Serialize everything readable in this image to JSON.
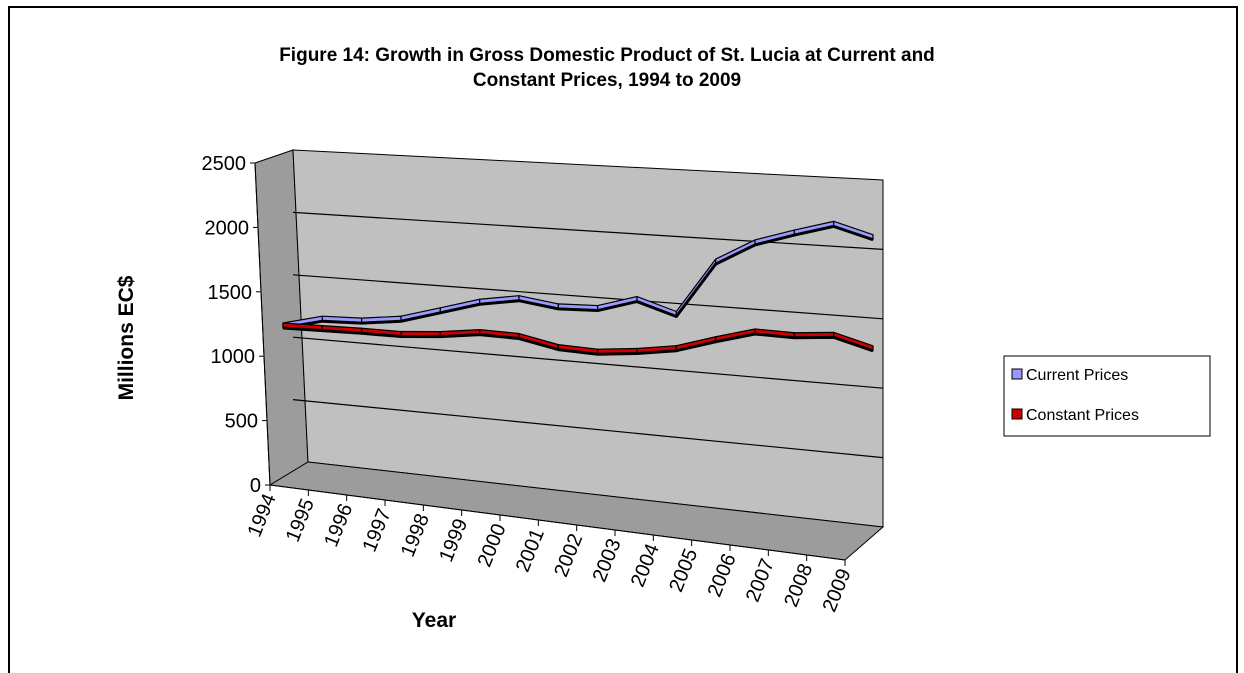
{
  "chart_data": {
    "type": "line",
    "title": "Figure 14: Growth in Gross Domestic Product of St. Lucia at Current and Constant Prices, 1994 to 2009",
    "title_lines": [
      "Figure 14: Growth in Gross Domestic Product of St. Lucia at Current and",
      "Constant Prices, 1994 to 2009"
    ],
    "xlabel": "Year",
    "ylabel": "Millions EC$",
    "ylim": [
      0,
      2500
    ],
    "yticks": [
      "0",
      "500",
      "1000",
      "1500",
      "2000",
      "2500"
    ],
    "categories": [
      "1994",
      "1995",
      "1996",
      "1997",
      "1998",
      "1999",
      "2000",
      "2001",
      "2002",
      "2003",
      "2004",
      "2005",
      "2006",
      "2007",
      "2008",
      "2009"
    ],
    "series": [
      {
        "name": "Current Prices",
        "color": "#9999ff",
        "values": [
          1130,
          1210,
          1220,
          1260,
          1350,
          1440,
          1490,
          1450,
          1460,
          1550,
          1460,
          1870,
          2030,
          2120,
          2200,
          2120
        ]
      },
      {
        "name": "Constant Prices",
        "color": "#cc0000",
        "values": [
          1130,
          1135,
          1140,
          1140,
          1165,
          1205,
          1200,
          1140,
          1130,
          1160,
          1205,
          1295,
          1375,
          1370,
          1395,
          1320
        ]
      }
    ],
    "grid": true,
    "legend": "right",
    "style": "3d-line"
  }
}
